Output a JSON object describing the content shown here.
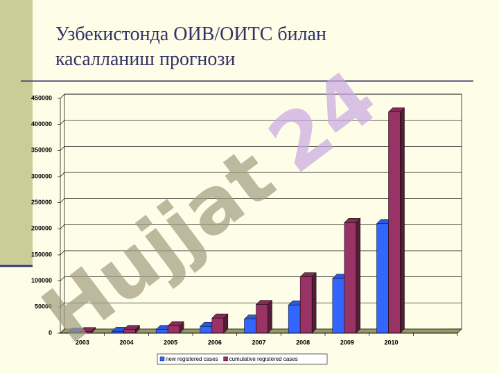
{
  "title": "Узбекистонда ОИВ/ОИТС билан\nкасалланиш прогнози",
  "watermark": [
    "Hujjat",
    "24"
  ],
  "chart_data": {
    "type": "bar",
    "categories": [
      "2003",
      "2004",
      "2005",
      "2006",
      "2007",
      "2008",
      "2009",
      "2010",
      null
    ],
    "series": [
      {
        "name": "new registered cases",
        "color": "#3366ff",
        "values": [
          1500,
          3500,
          7000,
          13000,
          27000,
          54000,
          105000,
          210000,
          null
        ]
      },
      {
        "name": "cumulative registered cases",
        "color": "#993366",
        "values": [
          3000,
          7000,
          14000,
          29000,
          55000,
          108000,
          212000,
          424000,
          null
        ]
      }
    ],
    "ylim": [
      0,
      450000
    ],
    "yticks": [
      0,
      50000,
      100000,
      150000,
      200000,
      250000,
      300000,
      350000,
      400000,
      450000
    ],
    "grid": true,
    "legend": "bottom"
  }
}
